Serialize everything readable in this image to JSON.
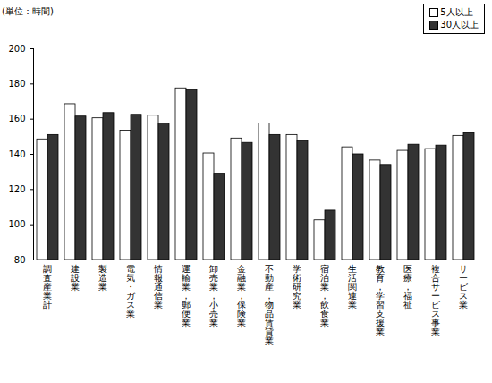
{
  "chart_data": {
    "type": "bar",
    "y_label": "(単位：時間)",
    "categories": [
      "調査産業計",
      "建設業",
      "製造業",
      "電気・ガス業",
      "情報通信業",
      "運輸業，郵便業",
      "卸売業，小売業",
      "金融業，保険業",
      "不動産，物品賃貸業",
      "学術研究業",
      "宿泊業，飲食業",
      "生活関連業",
      "教育，学習支援業",
      "医療，福祉",
      "複合サービス事業",
      "サービス業"
    ],
    "series": [
      {
        "name": "5人以上",
        "color": "#ffffff",
        "values": [
          148.5,
          168.5,
          160.5,
          153.5,
          162,
          177.5,
          140.5,
          149,
          157.5,
          151,
          102.5,
          144,
          136.5,
          142,
          143,
          150.5
        ]
      },
      {
        "name": "30人以上",
        "color": "#333333",
        "values": [
          151,
          161.5,
          163.5,
          162.5,
          157.5,
          176.5,
          129,
          146.5,
          151,
          147.5,
          108,
          140,
          134,
          145.5,
          145,
          152
        ]
      }
    ],
    "ylim": [
      80,
      200
    ],
    "yticks": [
      80,
      100,
      120,
      140,
      160,
      180,
      200
    ],
    "grid": false,
    "legend": "top-right"
  }
}
